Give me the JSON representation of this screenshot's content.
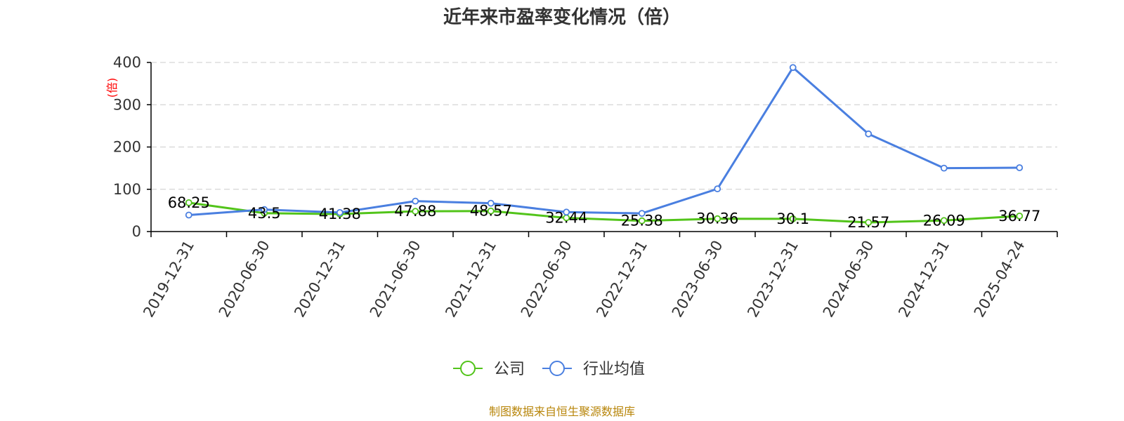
{
  "chart_data": {
    "type": "line",
    "title": "近年来市盈率变化情况（倍）",
    "ylabel": "(倍)",
    "xlabel": "",
    "ylim": [
      0,
      400
    ],
    "yticks": [
      0,
      100,
      200,
      300,
      400
    ],
    "categories": [
      "2019-12-31",
      "2020-06-30",
      "2020-12-31",
      "2021-06-30",
      "2021-12-31",
      "2022-06-30",
      "2022-12-31",
      "2023-06-30",
      "2023-12-31",
      "2024-06-30",
      "2024-12-31",
      "2025-04-24"
    ],
    "series": [
      {
        "name": "公司",
        "color": "#52c41a",
        "values": [
          68.25,
          43.5,
          41.38,
          47.88,
          48.57,
          32.44,
          25.38,
          30.36,
          30.1,
          21.57,
          26.09,
          36.77
        ],
        "labels": [
          "68.25",
          "43.5",
          "41.38",
          "47.88",
          "48.57",
          "32.44",
          "25.38",
          "30.36",
          "30.1",
          "21.57",
          "26.09",
          "36.77"
        ]
      },
      {
        "name": "行业均值",
        "color": "#4a7fe0",
        "values": [
          39,
          52,
          45,
          72,
          67,
          46,
          43,
          101,
          388,
          231,
          150,
          151
        ]
      }
    ],
    "grid": true,
    "legend": "bottom-center"
  },
  "footer": {
    "source": "制图数据来自恒生聚源数据库"
  }
}
